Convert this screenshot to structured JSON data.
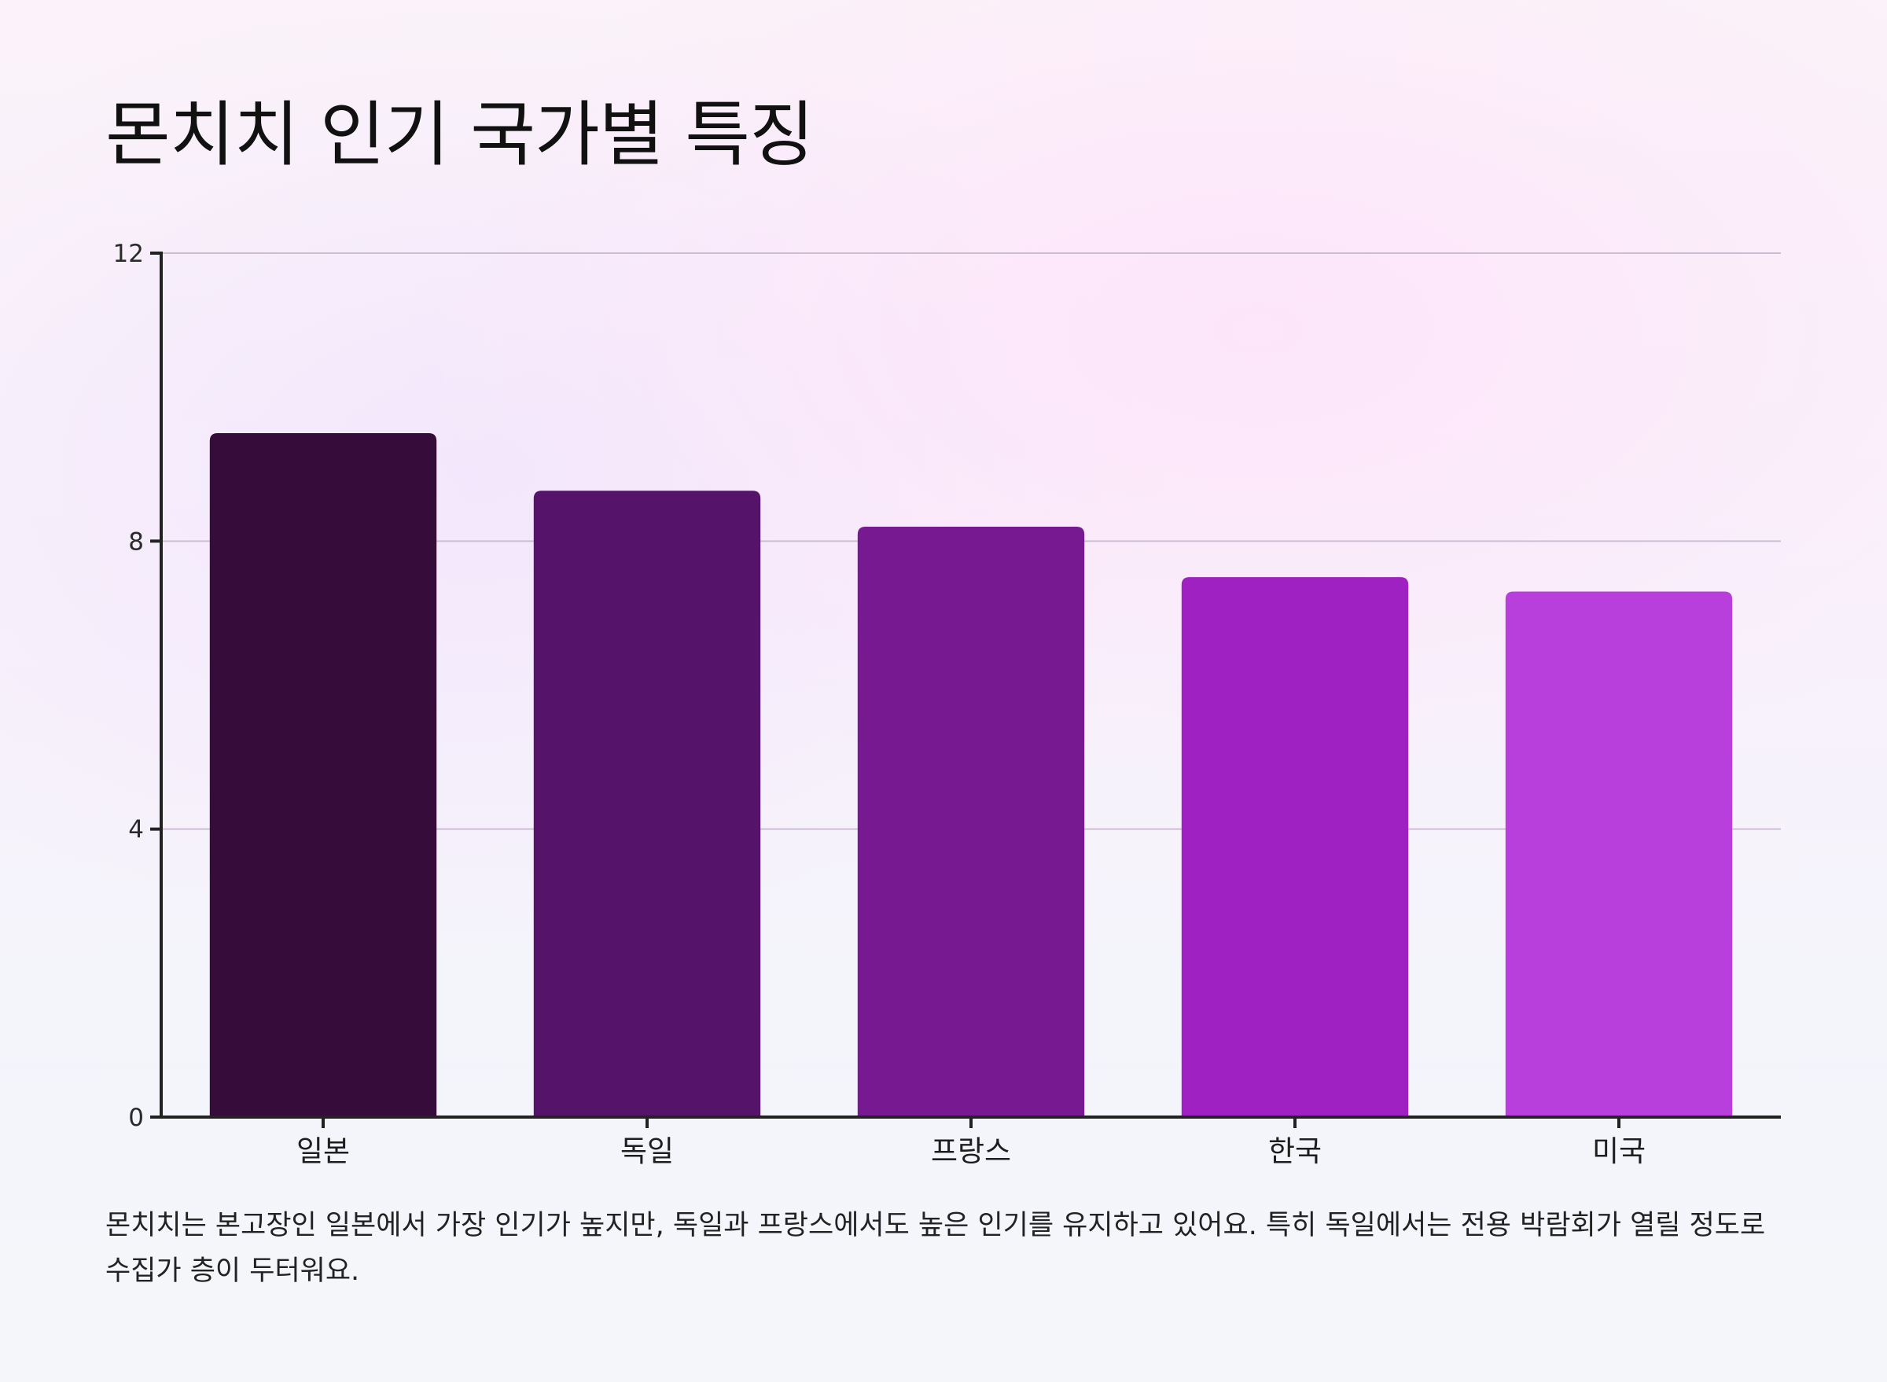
{
  "chart_data": {
    "type": "bar",
    "title": "몬치치 인기 국가별 특징",
    "categories": [
      "일본",
      "독일",
      "프랑스",
      "한국",
      "미국"
    ],
    "values": [
      9.5,
      8.7,
      8.2,
      7.5,
      7.3
    ],
    "colors": [
      "#350c3a",
      "#56136a",
      "#771a92",
      "#a021c2",
      "#b93fdd"
    ],
    "ylim": [
      0,
      12
    ],
    "yticks": [
      0,
      4,
      8,
      12
    ],
    "xlabel": "",
    "ylabel": "",
    "grid": true
  },
  "description": "몬치치는 본고장인 일본에서 가장 인기가 높지만, 독일과 프랑스에서도 높은 인기를 유지하고 있어요. 특히 독일에서는 전용 박람회가 열릴 정도로 수집가 층이 두터워요."
}
